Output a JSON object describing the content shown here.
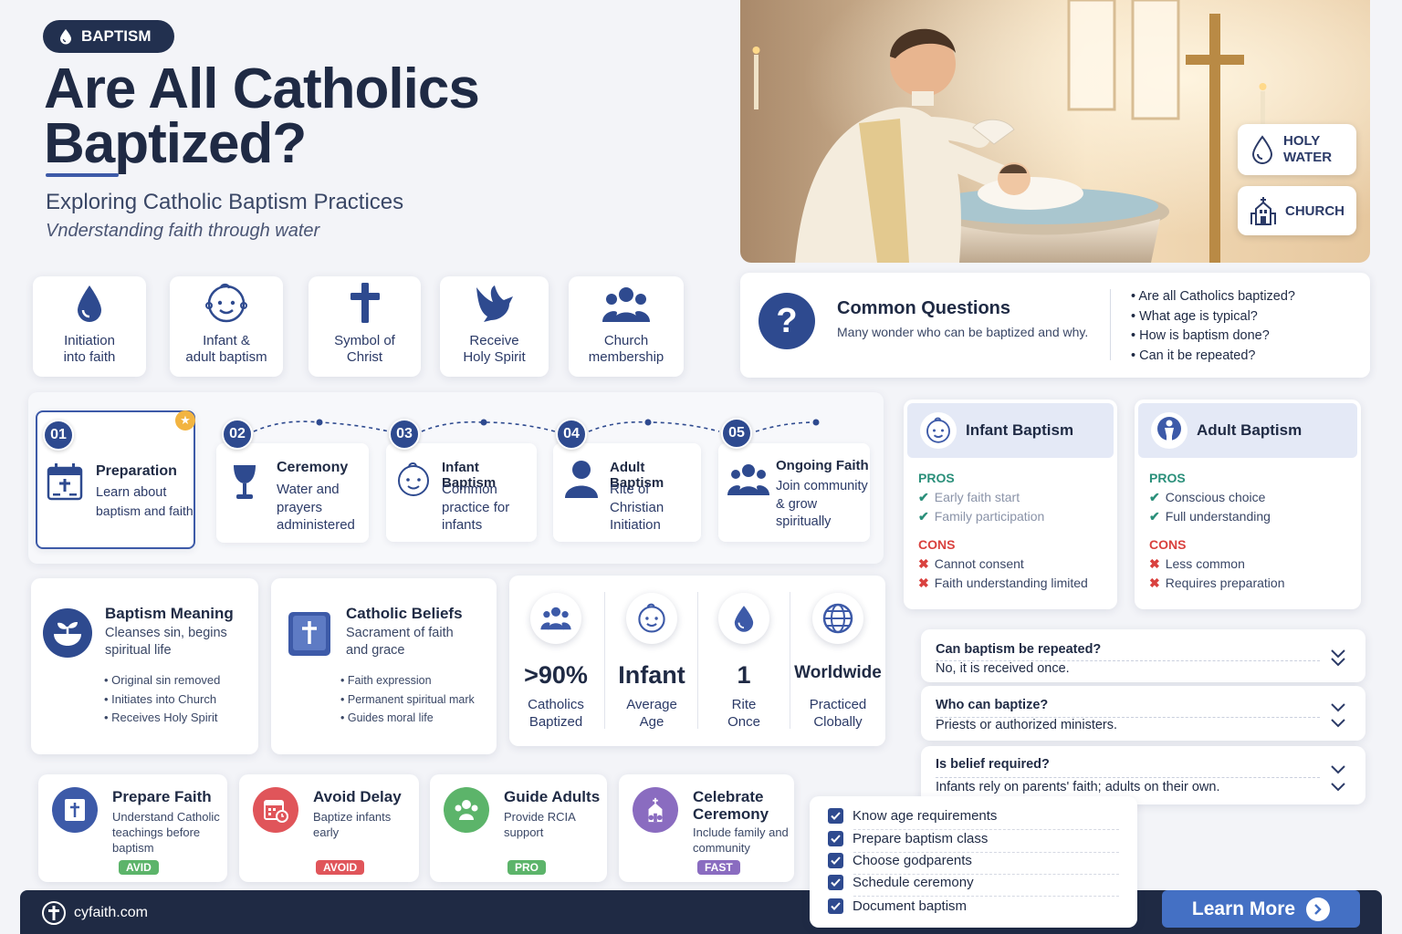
{
  "header": {
    "badge": "BAPTISM",
    "title_line1": "Are All Catholics",
    "title_line2": "Baptized?",
    "subtitle": "Exploring Catholic Baptism Practices",
    "tagline": "Vnderstanding faith through water"
  },
  "hero": {
    "tag_holy_water_1": "HOLY",
    "tag_holy_water_2": "WATER",
    "tag_church": "CHURCH"
  },
  "features": [
    {
      "line1": "Initiation",
      "line2": "into faith",
      "icon": "water-drop-icon"
    },
    {
      "line1": "Infant &",
      "line2": "adult baptism",
      "icon": "baby-face-icon"
    },
    {
      "line1": "Symbol of",
      "line2": "Christ",
      "icon": "cross-icon"
    },
    {
      "line1": "Receive",
      "line2": "Holy Spirit",
      "icon": "dove-icon"
    },
    {
      "line1": "Church",
      "line2": "membership",
      "icon": "people-icon"
    }
  ],
  "common_questions": {
    "title": "Common Questions",
    "subtitle": "Many wonder who can be baptized and why.",
    "items": [
      "Are all Catholics baptized?",
      "What age is typical?",
      "How is baptism done?",
      "Can it be repeated?"
    ]
  },
  "timeline": [
    {
      "num": "01",
      "title": "Preparation",
      "desc1": "Learn about",
      "desc2": "baptism and faith",
      "desc3": ""
    },
    {
      "num": "02",
      "title": "Ceremony",
      "desc1": "Water and",
      "desc2": "prayers",
      "desc3": "administered"
    },
    {
      "num": "03",
      "title": "Infant Baptism",
      "desc1": "Common",
      "desc2": "practice for",
      "desc3": "infants"
    },
    {
      "num": "04",
      "title": "Adult Baptism",
      "desc1": "Rite of",
      "desc2": "Christian",
      "desc3": "Initiation"
    },
    {
      "num": "05",
      "title": "Ongoing Faith",
      "desc1": "Join community",
      "desc2": "& grow",
      "desc3": "spiritually"
    }
  ],
  "meaning": {
    "title": "Baptism Meaning",
    "desc1": "Cleanses sin, begins",
    "desc2": "spiritual life",
    "bullets": [
      "Original sin removed",
      "Initiates into Church",
      "Receives Holy Spirit"
    ]
  },
  "beliefs": {
    "title": "Catholic Beliefs",
    "desc1": "Sacrament of faith",
    "desc2": "and grace",
    "bullets": [
      "Faith expression",
      "Permanent spiritual mark",
      "Guides moral life"
    ]
  },
  "stats": [
    {
      "value": ">90%",
      "label1": "Catholics",
      "label2": "Baptized"
    },
    {
      "value": "Infant",
      "label1": "Average",
      "label2": "Age"
    },
    {
      "value": "1",
      "label1": "Rite",
      "label2": "Once"
    },
    {
      "value": "Worldwide",
      "label1": "Practiced",
      "label2": "Clobally"
    }
  ],
  "infant_card": {
    "title": "Infant Baptism",
    "pros_label": "PROS",
    "pros": [
      "Early faith start",
      "Family participation"
    ],
    "cons_label": "CONS",
    "cons": [
      "Cannot consent",
      "Faith understanding limited"
    ]
  },
  "adult_card": {
    "title": "Adult Baptism",
    "pros_label": "PROS",
    "pros": [
      "Conscious choice",
      "Full understanding"
    ],
    "cons_label": "CONS",
    "cons": [
      "Less common",
      "Requires preparation"
    ]
  },
  "faq": [
    {
      "q": "Can baptism be repeated?",
      "a": "No, it is received once."
    },
    {
      "q": "Who can baptize?",
      "a": "Priests or authorized ministers."
    },
    {
      "q": "Is belief required?",
      "a": "Infants rely on parents' faith; adults on their own."
    }
  ],
  "actions": [
    {
      "title1": "Prepare Faith",
      "title2": "",
      "desc": [
        "Understand Catholic",
        "teachings before",
        "baptism"
      ],
      "pill": "AVID",
      "color": "#5cb46a"
    },
    {
      "title1": "Avoid Delay",
      "title2": "",
      "desc": [
        "Baptize infants",
        "early"
      ],
      "pill": "AVOID",
      "color": "#e0555a"
    },
    {
      "title1": "Guide Adults",
      "title2": "",
      "desc": [
        "Provide RCIA",
        "support"
      ],
      "pill": "PRO",
      "color": "#5cb46a"
    },
    {
      "title1": "Celebrate",
      "title2": "Ceremony",
      "desc": [
        "Include family and",
        "community"
      ],
      "pill": "FAST",
      "color": "#8a6cc0"
    }
  ],
  "checklist": [
    "Know age requirements",
    "Prepare baptism class",
    "Choose godparents",
    "Schedule ceremony",
    "Document baptism"
  ],
  "footer": {
    "site": "cyfaith.com",
    "cta": "Learn More"
  },
  "colors": {
    "navy": "#1f2a44",
    "accent": "#3d5aa8",
    "pros": "#2a8f7a",
    "cons": "#d9413e"
  }
}
